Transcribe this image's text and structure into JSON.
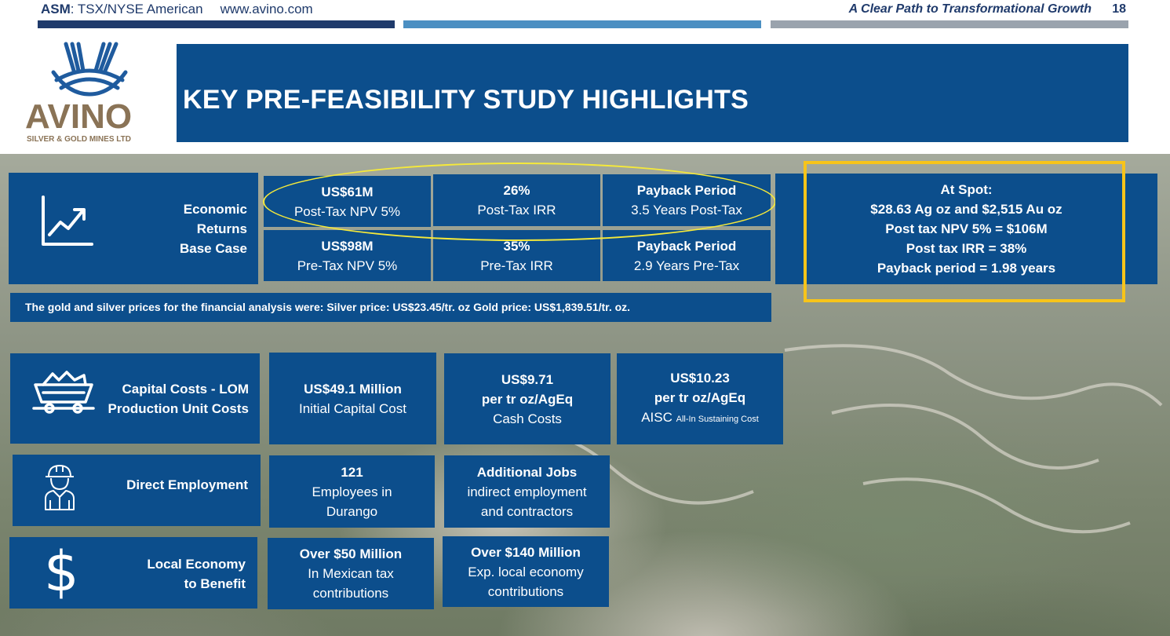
{
  "header": {
    "ticker_symbol": "ASM",
    "ticker_exchange": ": TSX/NYSE American",
    "website": "www.avino.com",
    "tagline": "A Clear Path to Transformational Growth",
    "page_number": "18"
  },
  "logo": {
    "name": "AVINO",
    "subtitle": "SILVER & GOLD MINES LTD"
  },
  "title": "KEY PRE-FEASIBILITY STUDY HIGHLIGHTS",
  "colors": {
    "panel_blue": "#0c4e8c",
    "header_text": "#1f3a6b",
    "bar_navy": "#1f3a6b",
    "bar_mid": "#4b8fc2",
    "bar_grey": "#9aa3ad",
    "oval_yellow": "#f5e93a",
    "highlight_gold": "#f7c41a",
    "logo_blue": "#1f5b9e",
    "logo_brown": "#8a7356"
  },
  "economic": {
    "icon": "growth-chart-icon",
    "label_line1": "Economic",
    "label_line2": "Returns",
    "label_line3": "Base Case",
    "cells": [
      {
        "value": "US$61M",
        "caption": "Post-Tax NPV 5%"
      },
      {
        "value": "26%",
        "caption": "Post-Tax IRR"
      },
      {
        "value": "Payback Period",
        "caption": "3.5 Years Post-Tax"
      },
      {
        "value": "US$98M",
        "caption": "Pre-Tax NPV 5%"
      },
      {
        "value": "35%",
        "caption": "Pre-Tax IRR"
      },
      {
        "value": "Payback Period",
        "caption": "2.9 Years Pre-Tax"
      }
    ]
  },
  "spot": {
    "line1": "At Spot:",
    "line2": "$28.63 Ag oz and $2,515 Au oz",
    "line3": "Post tax NPV 5% = $106M",
    "line4": "Post tax IRR = 38%",
    "line5": "Payback period = 1.98 years"
  },
  "price_note": "The gold and silver prices for the financial analysis were: Silver price: US$23.45/tr. oz Gold price: US$1,839.51/tr. oz.",
  "costs": {
    "icon": "mine-cart-icon",
    "label_line1": "Capital Costs - LOM",
    "label_line2": "Production Unit Costs",
    "capital_value": "US$49.1 Million",
    "capital_caption": "Initial  Capital Cost",
    "cash_value": "US$9.71",
    "cash_unit": "per tr oz/AgEq",
    "cash_caption": "Cash Costs",
    "aisc_value": "US$10.23",
    "aisc_unit": "per tr oz/AgEq",
    "aisc_caption": "AISC ",
    "aisc_small": "All-In Sustaining Cost"
  },
  "employment": {
    "icon": "worker-icon",
    "label": "Direct Employment",
    "count": "121",
    "count_line2": "Employees in",
    "count_line3": "Durango",
    "jobs_title": "Additional Jobs",
    "jobs_line2": "indirect employment",
    "jobs_line3": "and contractors"
  },
  "economy": {
    "icon": "dollar-icon",
    "label_line1": "Local Economy",
    "label_line2": "to Benefit",
    "tax_value": "Over $50 Million",
    "tax_line2": "In Mexican tax",
    "tax_line3": "contributions",
    "local_value": "Over $140 Million",
    "local_line2": "Exp. local economy",
    "local_line3": "contributions"
  }
}
